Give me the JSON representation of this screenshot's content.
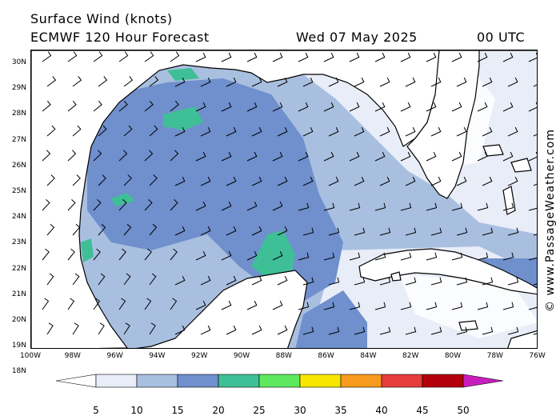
{
  "title": {
    "line1": "Surface Wind (knots)",
    "model": "ECMWF 120 Hour Forecast",
    "date": "Wed 07 May 2025",
    "time": "00 UTC"
  },
  "credit": "© www.PassageWeather.com",
  "latitude_labels": [
    "30N",
    "29N",
    "28N",
    "27N",
    "26N",
    "25N",
    "24N",
    "23N",
    "22N",
    "21N",
    "20N",
    "19N",
    "18N"
  ],
  "longitude_labels": [
    "100W",
    "98W",
    "96W",
    "94W",
    "92W",
    "90W",
    "88W",
    "86W",
    "84W",
    "82W",
    "80W",
    "78W",
    "76W"
  ],
  "legend": {
    "ticks": [
      "5",
      "10",
      "15",
      "20",
      "25",
      "30",
      "35",
      "40",
      "45",
      "50"
    ],
    "colors": [
      "#e8edf7",
      "#a9bfe0",
      "#6f8fcd",
      "#3fbf96",
      "#5ee85e",
      "#f7e600",
      "#f79a1e",
      "#e63c3c",
      "#b4000a",
      "#c81ebe"
    ]
  },
  "colors": {
    "land": "#ffffff",
    "coastline": "#000000",
    "barb": "#000000"
  }
}
